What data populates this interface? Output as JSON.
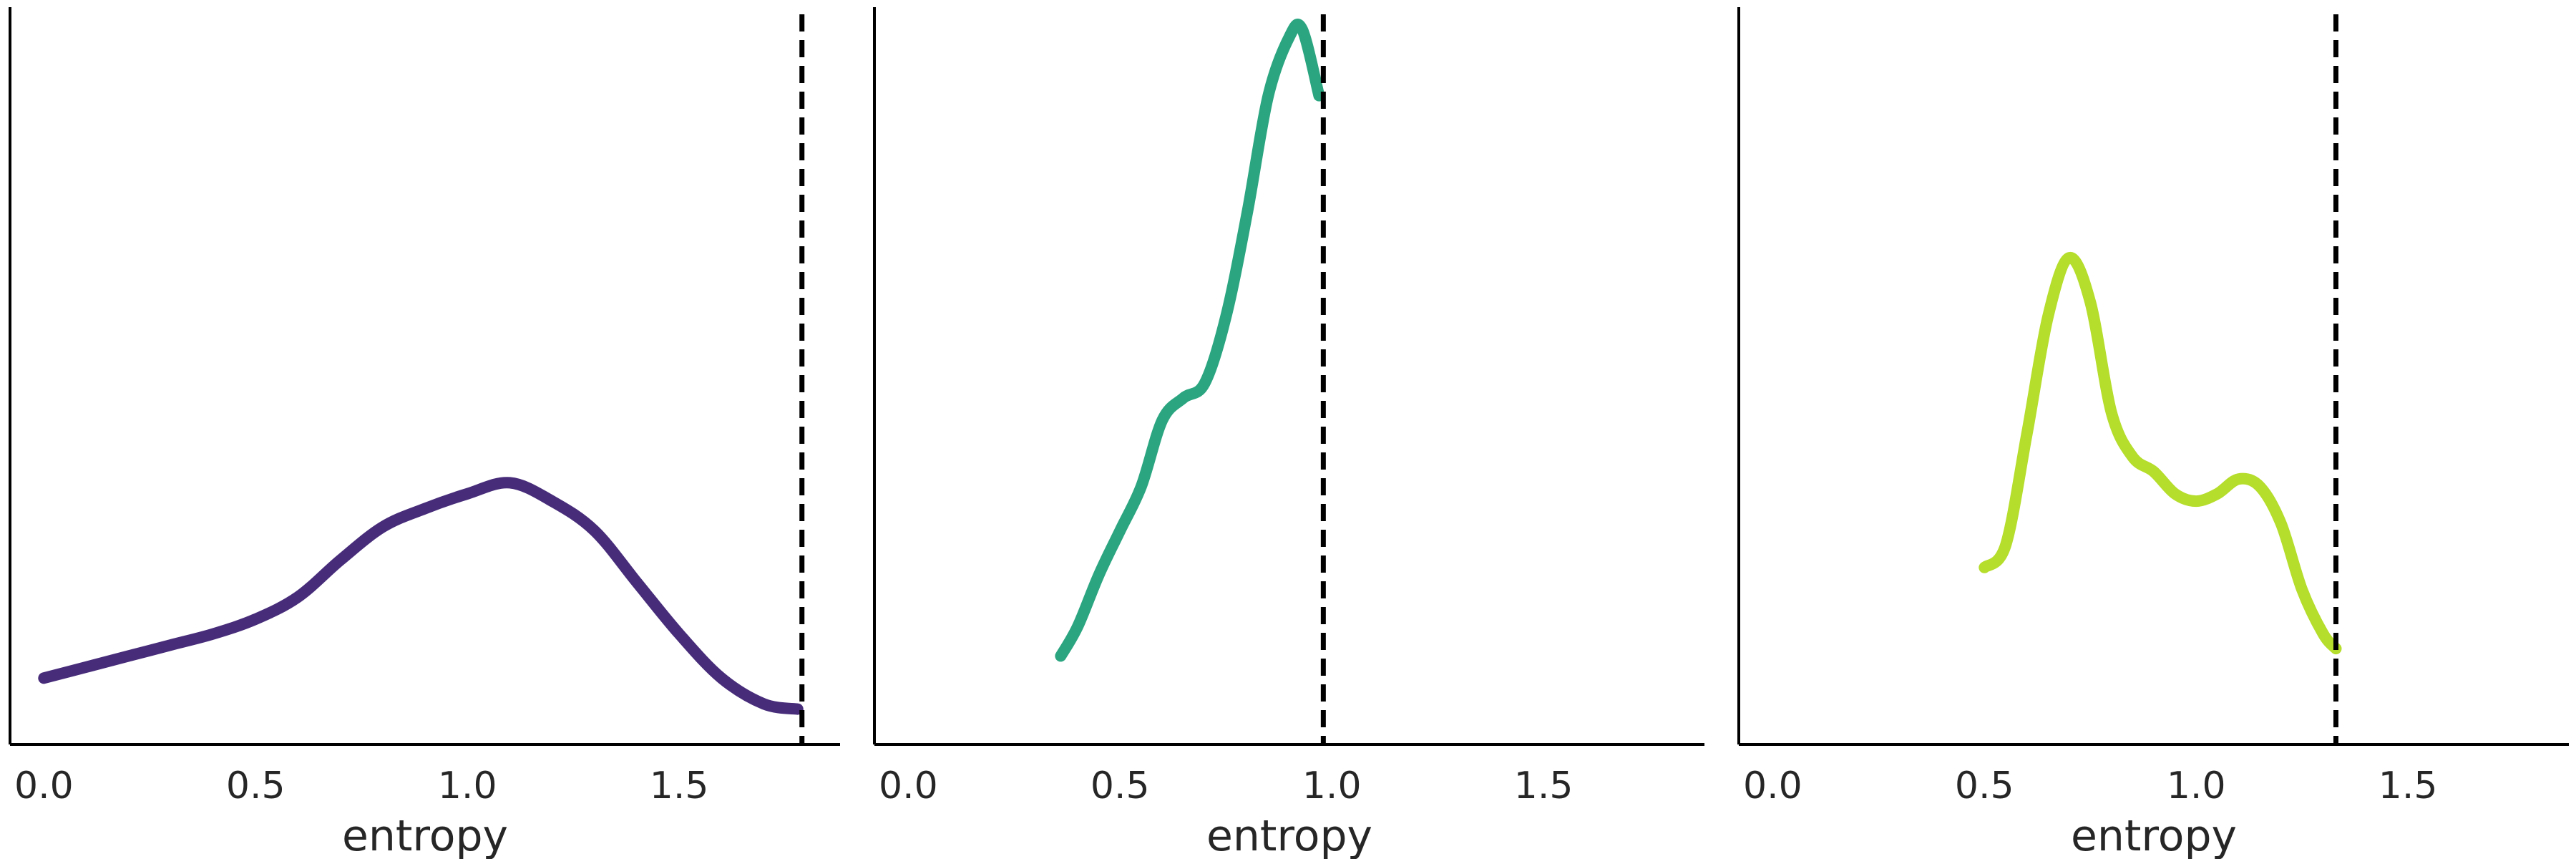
{
  "chart_data": [
    {
      "type": "line",
      "xlabel": "entropy",
      "ylabel": "",
      "xlim": [
        -0.08,
        1.88
      ],
      "ylim": [
        0,
        1
      ],
      "xticks": [
        "0.0",
        "0.5",
        "1.0",
        "1.5"
      ],
      "grid": false,
      "series": [
        {
          "color": "#472c7a",
          "x": [
            0.0,
            0.1,
            0.2,
            0.3,
            0.4,
            0.5,
            0.6,
            0.7,
            0.8,
            0.9,
            1.0,
            1.1,
            1.2,
            1.3,
            1.4,
            1.5,
            1.6,
            1.7,
            1.78
          ],
          "y": [
            0.09,
            0.105,
            0.12,
            0.135,
            0.15,
            0.17,
            0.2,
            0.25,
            0.295,
            0.32,
            0.34,
            0.355,
            0.33,
            0.29,
            0.22,
            0.15,
            0.09,
            0.055,
            0.048
          ]
        }
      ],
      "vline": 1.79
    },
    {
      "type": "line",
      "xlabel": "entropy",
      "ylabel": "",
      "xlim": [
        -0.08,
        1.88
      ],
      "ylim": [
        0,
        1
      ],
      "xticks": [
        "0.0",
        "0.5",
        "1.0",
        "1.5"
      ],
      "grid": false,
      "series": [
        {
          "color": "#2aa57f",
          "x": [
            0.36,
            0.4,
            0.45,
            0.5,
            0.55,
            0.6,
            0.65,
            0.7,
            0.75,
            0.8,
            0.85,
            0.9,
            0.93,
            0.97
          ],
          "y": [
            0.12,
            0.16,
            0.23,
            0.29,
            0.35,
            0.44,
            0.47,
            0.49,
            0.58,
            0.72,
            0.88,
            0.96,
            0.97,
            0.88
          ]
        }
      ],
      "vline": 0.98
    },
    {
      "type": "line",
      "xlabel": "entropy",
      "ylabel": "",
      "xlim": [
        -0.08,
        1.88
      ],
      "ylim": [
        0,
        1
      ],
      "xticks": [
        "0.0",
        "0.5",
        "1.0",
        "1.5"
      ],
      "grid": false,
      "series": [
        {
          "color": "#b5dd2b",
          "x": [
            0.5,
            0.55,
            0.6,
            0.65,
            0.7,
            0.75,
            0.8,
            0.85,
            0.9,
            0.95,
            1.0,
            1.05,
            1.1,
            1.15,
            1.2,
            1.25,
            1.3,
            1.33
          ],
          "y": [
            0.24,
            0.27,
            0.42,
            0.58,
            0.66,
            0.6,
            0.45,
            0.39,
            0.37,
            0.34,
            0.33,
            0.34,
            0.36,
            0.35,
            0.3,
            0.21,
            0.15,
            0.13
          ]
        }
      ],
      "vline": 1.33
    }
  ]
}
